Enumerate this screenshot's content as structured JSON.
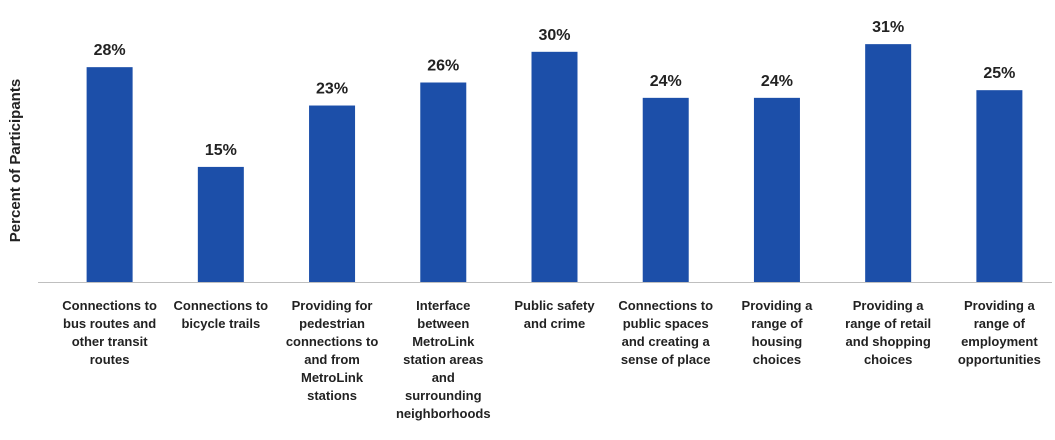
{
  "chart_data": {
    "type": "bar",
    "title": "",
    "xlabel": "",
    "ylabel": "Percent of Participants",
    "ylim": [
      0,
      31.8
    ],
    "grid": false,
    "legend": "none",
    "bar_color": "#1c4fa9",
    "axis_color": "#bfbfbf",
    "categories": [
      "Connections to\nbus routes and\nother transit\nroutes",
      "Connections to\nbicycle trails",
      "Providing for\npedestrian\nconnections to\nand from\nMetroLink\nstations",
      "Interface\nbetween\nMetroLink\nstation areas\nand\nsurrounding\nneighborhoods",
      "Public safety\nand crime",
      "Connections to\npublic spaces\nand creating a\nsense of place",
      "Providing a\nrange of\nhousing\nchoices",
      "Providing a\nrange of retail\nand shopping\nchoices",
      "Providing a\nrange of\nemployment\nopportunities"
    ],
    "values": [
      28,
      15,
      23,
      26,
      30,
      24,
      24,
      31,
      25
    ],
    "value_labels": [
      "28%",
      "15%",
      "23%",
      "26%",
      "30%",
      "24%",
      "24%",
      "31%",
      "25%"
    ]
  }
}
